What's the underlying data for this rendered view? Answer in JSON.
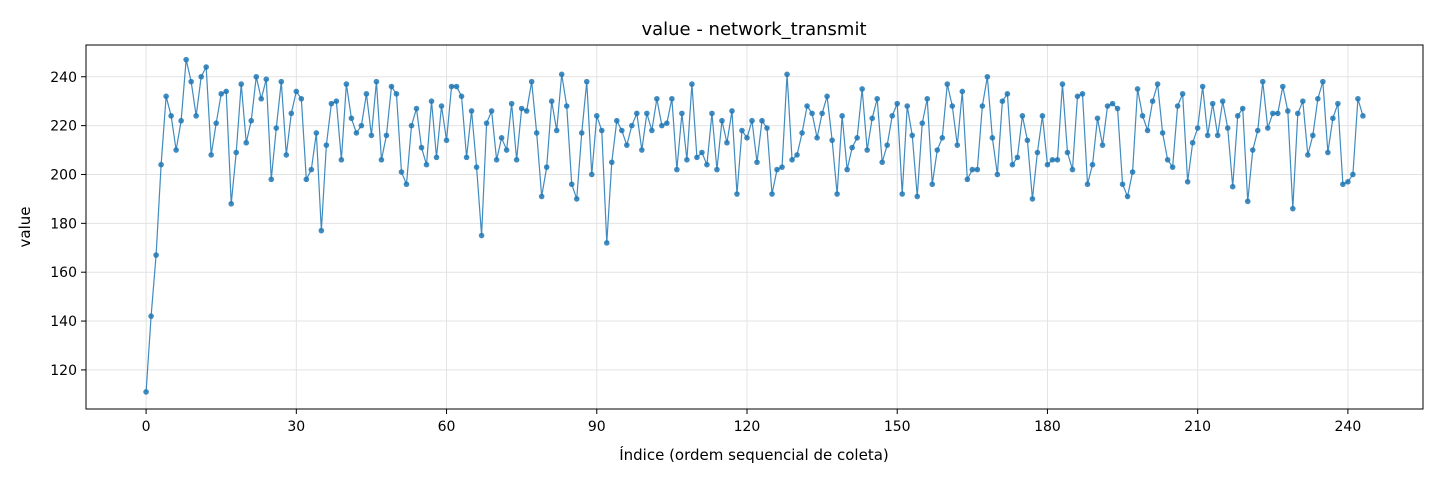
{
  "chart_data": {
    "type": "line",
    "title": "value - network_transmit",
    "xlabel": "Índice (ordem sequencial de coleta)",
    "ylabel": "value",
    "xlim": [
      -12,
      255
    ],
    "ylim": [
      104,
      253
    ],
    "xticks": [
      0,
      30,
      60,
      90,
      120,
      150,
      180,
      210,
      240
    ],
    "yticks": [
      120,
      140,
      160,
      180,
      200,
      220,
      240
    ],
    "grid": true,
    "markers": true,
    "color": "#1f77b4",
    "series": [
      {
        "x_start": 0,
        "values": [
          111,
          142,
          167,
          204,
          232,
          224,
          210,
          222,
          247,
          238,
          224,
          240,
          244,
          208,
          221,
          233,
          234,
          188,
          209,
          237,
          213,
          222,
          240,
          231,
          239,
          198,
          219,
          238,
          208,
          225,
          234,
          231,
          198,
          202,
          217,
          177,
          212,
          229,
          230,
          206,
          237,
          223,
          217,
          220,
          233,
          216,
          238,
          206,
          216,
          236,
          233,
          201,
          196,
          220,
          227,
          211,
          204,
          230,
          207,
          228,
          214,
          236,
          236,
          232,
          207,
          226,
          203,
          175,
          221,
          226,
          206,
          215,
          210,
          229,
          206,
          227,
          226,
          238,
          217,
          191,
          203,
          230,
          218,
          241,
          228,
          196,
          190,
          217,
          238,
          200,
          224,
          218,
          172,
          205,
          222,
          218,
          212,
          220,
          225,
          210,
          225,
          218,
          231,
          220,
          221,
          231,
          202,
          225,
          206,
          237,
          207,
          209,
          204,
          225,
          202,
          222,
          213,
          226,
          192,
          218,
          215,
          222,
          205,
          222,
          219,
          192,
          202,
          203,
          241,
          206,
          208,
          217,
          228,
          225,
          215,
          225,
          232,
          214,
          192,
          224,
          202,
          211,
          215,
          235,
          210,
          223,
          231,
          205,
          212,
          224,
          229,
          192,
          228,
          216,
          191,
          221,
          231,
          196,
          210,
          215,
          237,
          228,
          212,
          234,
          198,
          202,
          202,
          228,
          240,
          215,
          200,
          230,
          233,
          204,
          207,
          224,
          214,
          190,
          209,
          224,
          204,
          206,
          206,
          237,
          209,
          202,
          232,
          233,
          196,
          204,
          223,
          212,
          228,
          229,
          227,
          196,
          191,
          201,
          235,
          224,
          218,
          230,
          237,
          217,
          206,
          203,
          228,
          233,
          197,
          213,
          219,
          236,
          216,
          229,
          216,
          230,
          219,
          195,
          224,
          227,
          189,
          210,
          218,
          238,
          219,
          225,
          225,
          236,
          226,
          186,
          225,
          230,
          208,
          216,
          231,
          238,
          209,
          223,
          229,
          196,
          197,
          200,
          231,
          224
        ]
      }
    ]
  }
}
